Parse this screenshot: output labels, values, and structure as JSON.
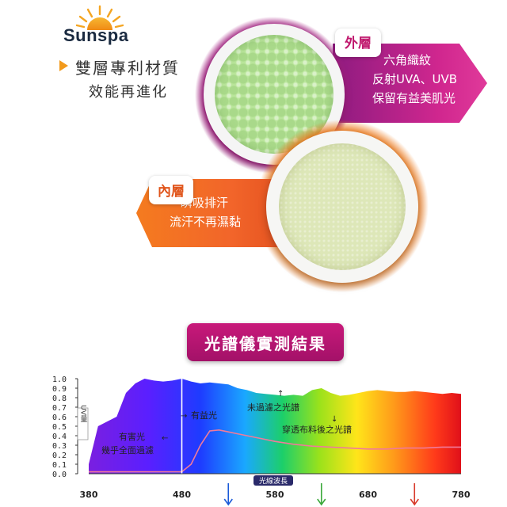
{
  "brand": {
    "name": "Sunspa"
  },
  "headline": {
    "line1": "雙層專利材質",
    "line2": "效能再進化"
  },
  "outer_layer": {
    "tag": "外層",
    "line1": "六角織紋",
    "line2": "反射UVA、UVB",
    "line3": "保留有益美肌光"
  },
  "inner_layer": {
    "tag": "內層",
    "line1": "瞬吸排汗",
    "line2": "流汗不再濕黏"
  },
  "spectrum_section": {
    "title": "光譜儀實測結果"
  },
  "colors": {
    "magenta": "#c8197a",
    "orange": "#f2652a",
    "fabric_outer": "#b9e59a",
    "fabric_inner": "#dde7b8"
  },
  "chart_data": {
    "type": "area",
    "ylabel": "UV量",
    "xlabel": "光線波長",
    "x_ticks": [
      "380",
      "480",
      "580",
      "680",
      "780"
    ],
    "y_ticks": [
      "0.0",
      "0.1",
      "0.2",
      "0.3",
      "0.4",
      "0.5",
      "0.6",
      "0.7",
      "0.8",
      "0.9",
      "1.0"
    ],
    "xlim": [
      380,
      780
    ],
    "ylim": [
      0,
      1.0
    ],
    "annotations": {
      "harmful": {
        "line1": "有害光",
        "line2": "幾乎全面過濾"
      },
      "beneficial": "有益光",
      "unfiltered": "未過濾之光譜",
      "filtered": "穿透布料後之光譜"
    },
    "series": [
      {
        "x": [
          380,
          390,
          400,
          410,
          420,
          430,
          440,
          450,
          460,
          470,
          480,
          490,
          500,
          510,
          520,
          530,
          540,
          550,
          560,
          570,
          580,
          590,
          600,
          610,
          620,
          630,
          640,
          650,
          660,
          670,
          680,
          690,
          700,
          710,
          720,
          730,
          740,
          750,
          760,
          770,
          780
        ],
        "values": [
          0.1,
          0.5,
          0.55,
          0.6,
          0.85,
          0.95,
          1.0,
          0.98,
          0.97,
          0.98,
          1.0,
          0.97,
          0.95,
          0.96,
          0.95,
          0.94,
          0.9,
          0.88,
          0.85,
          0.84,
          0.83,
          0.82,
          0.83,
          0.82,
          0.88,
          0.9,
          0.85,
          0.82,
          0.83,
          0.85,
          0.87,
          0.88,
          0.87,
          0.86,
          0.86,
          0.87,
          0.86,
          0.85,
          0.84,
          0.85,
          0.84
        ]
      },
      {
        "x": [
          380,
          400,
          420,
          440,
          460,
          470,
          480,
          490,
          500,
          510,
          520,
          530,
          540,
          560,
          580,
          600,
          620,
          640,
          660,
          680,
          700,
          720,
          740,
          760,
          780
        ],
        "values": [
          0.02,
          0.02,
          0.02,
          0.02,
          0.02,
          0.02,
          0.02,
          0.1,
          0.3,
          0.45,
          0.46,
          0.44,
          0.42,
          0.38,
          0.34,
          0.31,
          0.29,
          0.28,
          0.27,
          0.26,
          0.26,
          0.27,
          0.27,
          0.28,
          0.28
        ]
      }
    ]
  }
}
